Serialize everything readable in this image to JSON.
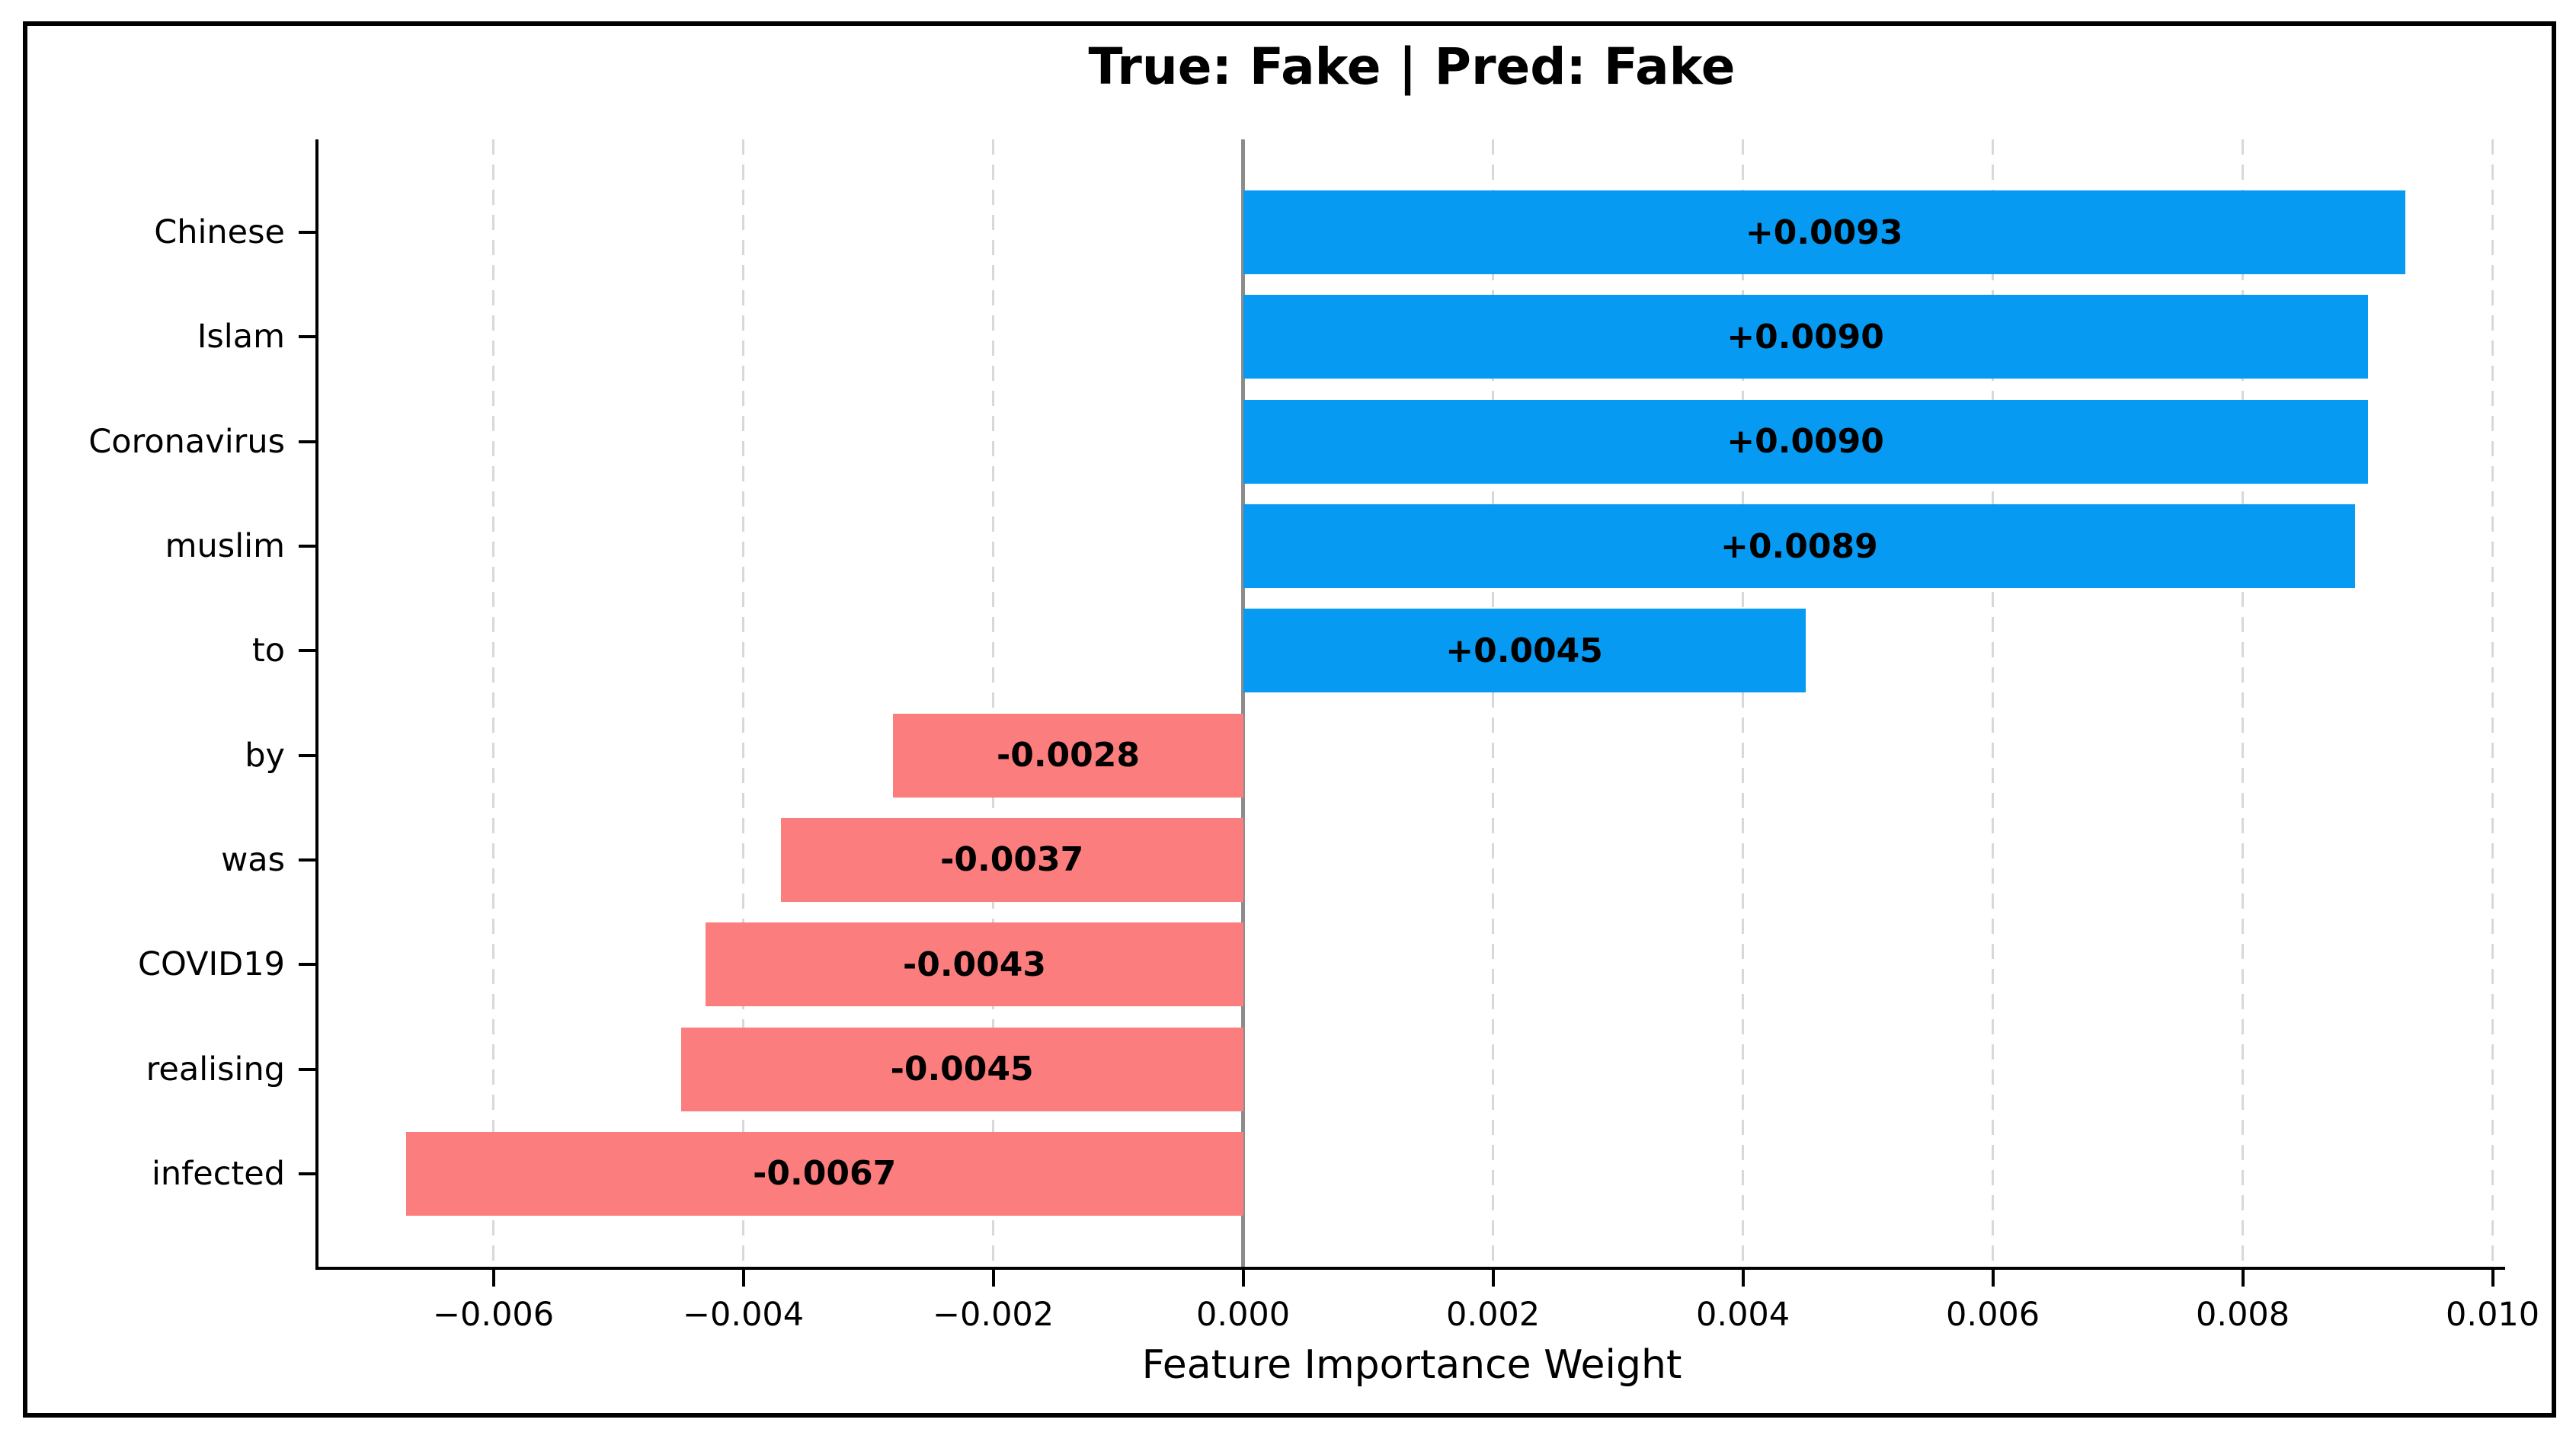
{
  "title": "True: Fake | Pred: Fake",
  "xlabel": "Feature Importance Weight",
  "chart_data": {
    "type": "bar",
    "orientation": "horizontal",
    "title": "True: Fake | Pred: Fake",
    "xlabel": "Feature Importance Weight",
    "categories": [
      "Chinese",
      "Islam",
      "Coronavirus",
      "muslim",
      "to",
      "by",
      "was",
      "COVID19",
      "realising",
      "infected"
    ],
    "values": [
      0.0093,
      0.009,
      0.009,
      0.0089,
      0.0045,
      -0.0028,
      -0.0037,
      -0.0043,
      -0.0045,
      -0.0067
    ],
    "bar_labels": [
      "+0.0093",
      "+0.0090",
      "+0.0090",
      "+0.0089",
      "+0.0045",
      "-0.0028",
      "-0.0037",
      "-0.0043",
      "-0.0045",
      "-0.0067"
    ],
    "x_ticks": [
      -0.006,
      -0.004,
      -0.002,
      0,
      0.002,
      0.004,
      0.006,
      0.008,
      0.01
    ],
    "x_tick_labels": [
      "−0.006",
      "−0.004",
      "−0.002",
      "0.000",
      "0.002",
      "0.004",
      "0.006",
      "0.008",
      "0.010"
    ],
    "xlim": [
      -0.0074,
      0.0101
    ],
    "grid": true,
    "gridline_style": "dashed",
    "legend": "none",
    "colors": {
      "positive_bar": "#069AF3",
      "negative_bar": "#FC7D7D",
      "zero_line": "#8c8c8c",
      "gridline": "#d8d8d8",
      "text": "#000000",
      "background": "#ffffff"
    }
  }
}
